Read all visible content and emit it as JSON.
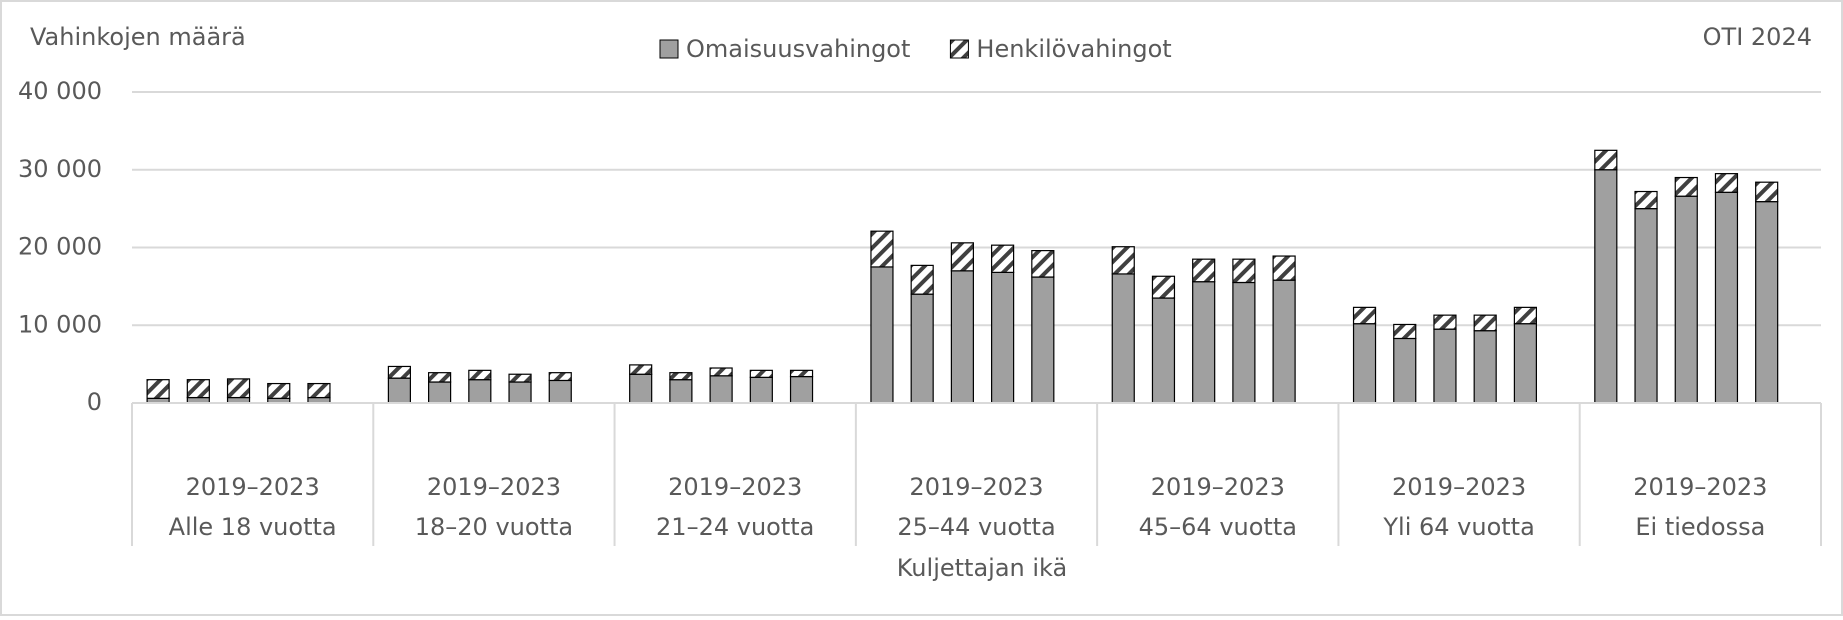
{
  "chart_data": {
    "type": "stacked-bar",
    "ylabel": "Vahinkojen määrä",
    "source": "OTI 2024",
    "xlabel": "Kuljettajan ikä",
    "groups": [
      {
        "period": "2019–2023",
        "name": "Alle 18 vuotta"
      },
      {
        "period": "2019–2023",
        "name": "18–20 vuotta"
      },
      {
        "period": "2019–2023",
        "name": "21–24 vuotta"
      },
      {
        "period": "2019–2023",
        "name": "25–44 vuotta"
      },
      {
        "period": "2019–2023",
        "name": "45–64 vuotta"
      },
      {
        "period": "2019–2023",
        "name": "Yli 64 vuotta"
      },
      {
        "period": "2019–2023",
        "name": "Ei tiedossa"
      }
    ],
    "series": [
      {
        "name": "Omaisuusvahingot",
        "color": "#a0a0a0",
        "hatch": false,
        "values": [
          600,
          700,
          700,
          600,
          700,
          3200,
          2700,
          3000,
          2700,
          2900,
          3700,
          3000,
          3500,
          3300,
          3400,
          17500,
          14000,
          17000,
          16800,
          16200,
          16600,
          13500,
          15600,
          15500,
          15800,
          10200,
          8300,
          9500,
          9300,
          10200,
          30000,
          25000,
          26600,
          27100,
          25900
        ]
      },
      {
        "name": "Henkilövahingot",
        "color": "#ffffff",
        "hatch": true,
        "values": [
          2400,
          2300,
          2400,
          1900,
          1800,
          1500,
          1200,
          1200,
          1000,
          1000,
          1200,
          900,
          1000,
          900,
          800,
          4600,
          3700,
          3600,
          3500,
          3400,
          3500,
          2800,
          2900,
          3000,
          3100,
          2100,
          1800,
          1800,
          2000,
          2100,
          2500,
          2200,
          2400,
          2400,
          2500
        ]
      }
    ],
    "ylim": [
      0,
      40000
    ],
    "yticks": [
      0,
      {
        "value": 10000,
        "label": "10 000"
      },
      {
        "value": 20000,
        "label": "20 000"
      },
      {
        "value": 30000,
        "label": "30 000"
      },
      {
        "value": 40000,
        "label": "40 000"
      }
    ],
    "grid": true
  }
}
